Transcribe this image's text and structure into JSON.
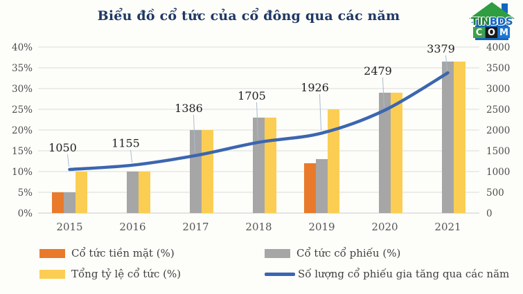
{
  "page": {
    "background": "#FDFDFA"
  },
  "chart_data": {
    "type": "combo-bar-line",
    "title": "Biểu đồ cổ tức của cổ đông qua các năm",
    "categories": [
      "2015",
      "2016",
      "2017",
      "2018",
      "2019",
      "2020",
      "2021"
    ],
    "series": [
      {
        "name": "Cổ tức tiền mặt (%)",
        "type": "bar",
        "axis": "left",
        "color": "#E97A2B",
        "values": [
          5,
          0,
          0,
          0,
          12,
          0,
          0
        ]
      },
      {
        "name": "Cổ tức cổ phiếu (%)",
        "type": "bar",
        "axis": "left",
        "color": "#A6A6A6",
        "values": [
          5,
          10,
          20,
          23,
          13,
          29,
          36.5
        ]
      },
      {
        "name": "Tổng tỷ lệ cổ tức (%)",
        "type": "bar",
        "axis": "left",
        "color": "#FBCE53",
        "values": [
          10,
          10,
          20,
          23,
          25,
          29,
          36.5
        ]
      },
      {
        "name": "Số lượng cổ phiếu gia tăng qua các năm",
        "type": "line",
        "axis": "right",
        "color": "#3B66B0",
        "values": [
          1050,
          1155,
          1386,
          1705,
          1926,
          2479,
          3379
        ],
        "data_labels": [
          "1050",
          "1155",
          "1386",
          "1705",
          "1926",
          "2479",
          "3379"
        ]
      }
    ],
    "left_axis": {
      "min": 0,
      "max": 40,
      "step": 5,
      "unit": "%",
      "ticks": [
        "0%",
        "5%",
        "10%",
        "15%",
        "20%",
        "25%",
        "30%",
        "35%",
        "40%"
      ]
    },
    "right_axis": {
      "min": 0,
      "max": 4000,
      "step": 500,
      "ticks": [
        "0",
        "500",
        "1000",
        "1500",
        "2000",
        "2500",
        "3000",
        "3500",
        "4000"
      ]
    },
    "grid": true,
    "legend_position": "bottom",
    "colors": {
      "gridline": "#DBDBDB",
      "axis_line": "#C9C9C9",
      "tick_text": "#4D4D4D",
      "category_text": "#555555",
      "data_label_text": "#1F1F1F",
      "leader_line": "#A9BBD0",
      "title": "#1F3864"
    }
  },
  "logo": {
    "tin": "TIN",
    "bds": "BDS",
    "c": "C",
    "o": "O",
    "m": "M",
    "colors": {
      "roof": "#2F9E41",
      "house": "#1565C0",
      "tin_text": "#1E7E34",
      "bds_text": "#1565C0",
      "block_c": "#3FA047",
      "block_o": "#1A1A1A",
      "block_m": "#1976D2"
    }
  }
}
